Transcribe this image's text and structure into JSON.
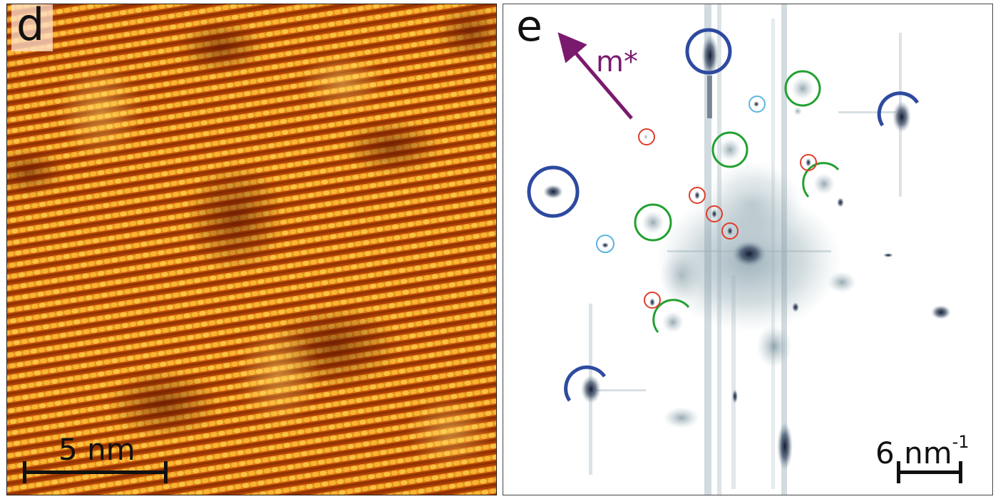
{
  "panel_d": {
    "letter": "d",
    "scale_label": "5 nm",
    "colors": {
      "dark": "#7a1e00",
      "mid": "#d2640c",
      "bright": "#ffd24a"
    }
  },
  "panel_e": {
    "letter": "e",
    "direction_label": "m*",
    "scale_value": "6 nm",
    "scale_exponent": "-1",
    "colors": {
      "spot": "#1e2846",
      "haze": "#8fa6b0",
      "blue_circle": "#2e4aa0",
      "green_circle": "#22a030",
      "red_circle": "#e03c2a",
      "cyan_circle": "#5ab4e0",
      "arrow": "#7a1a6e"
    }
  }
}
